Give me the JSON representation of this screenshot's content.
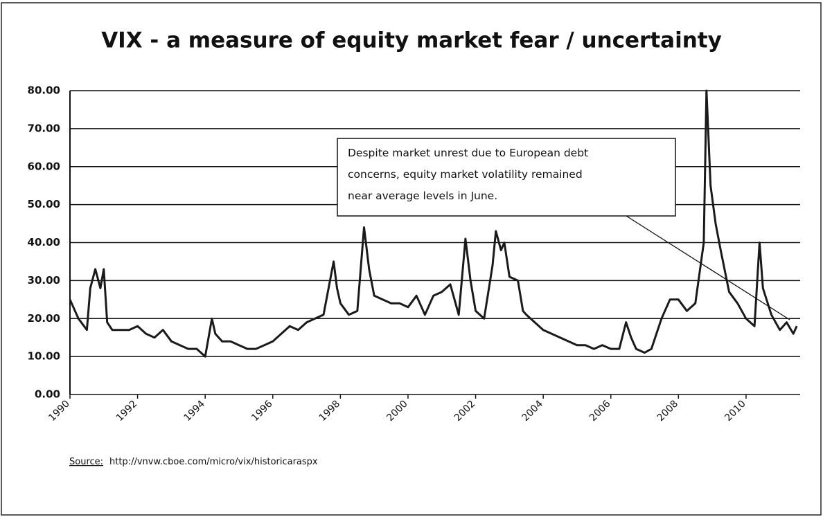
{
  "chart_data": {
    "type": "line",
    "title": "VIX - a measure of equity market fear / uncertainty",
    "x": [
      1990.0,
      1990.25,
      1990.5,
      1990.6,
      1990.75,
      1990.9,
      1991.0,
      1991.1,
      1991.25,
      1991.5,
      1991.75,
      1992.0,
      1992.25,
      1992.5,
      1992.75,
      1993.0,
      1993.25,
      1993.5,
      1993.75,
      1994.0,
      1994.2,
      1994.3,
      1994.5,
      1994.75,
      1995.0,
      1995.25,
      1995.5,
      1995.75,
      1996.0,
      1996.25,
      1996.5,
      1996.75,
      1997.0,
      1997.25,
      1997.5,
      1997.8,
      1997.9,
      1998.0,
      1998.25,
      1998.5,
      1998.7,
      1998.85,
      1999.0,
      1999.25,
      1999.5,
      1999.75,
      2000.0,
      2000.25,
      2000.5,
      2000.75,
      2001.0,
      2001.25,
      2001.5,
      2001.7,
      2001.85,
      2002.0,
      2002.25,
      2002.5,
      2002.6,
      2002.75,
      2002.85,
      2003.0,
      2003.25,
      2003.4,
      2003.5,
      2003.75,
      2004.0,
      2004.25,
      2004.5,
      2004.75,
      2005.0,
      2005.25,
      2005.5,
      2005.75,
      2006.0,
      2006.25,
      2006.45,
      2006.6,
      2006.75,
      2007.0,
      2007.2,
      2007.5,
      2007.75,
      2008.0,
      2008.25,
      2008.5,
      2008.75,
      2008.83,
      2008.95,
      2009.1,
      2009.25,
      2009.5,
      2009.75,
      2010.0,
      2010.25,
      2010.4,
      2010.5,
      2010.75,
      2011.0,
      2011.2,
      2011.4,
      2011.5
    ],
    "series": [
      {
        "color": "#1a1a1a",
        "values": [
          25,
          20,
          17,
          28,
          33,
          28,
          33,
          19,
          17,
          17,
          17,
          18,
          16,
          15,
          17,
          14,
          13,
          12,
          12,
          10,
          20,
          16,
          14,
          14,
          13,
          12,
          12,
          13,
          14,
          16,
          18,
          17,
          19,
          20,
          21,
          35,
          28,
          24,
          21,
          22,
          44,
          33,
          26,
          25,
          24,
          24,
          23,
          26,
          21,
          26,
          27,
          29,
          21,
          41,
          30,
          22,
          20,
          34,
          43,
          38,
          40,
          31,
          30,
          22,
          21,
          19,
          17,
          16,
          15,
          14,
          13,
          13,
          12,
          13,
          12,
          12,
          19,
          15,
          12,
          11,
          12,
          20,
          25,
          25,
          22,
          24,
          40,
          80,
          55,
          45,
          38,
          27,
          24,
          20,
          18,
          40,
          28,
          21,
          17,
          19,
          16,
          18
        ]
      }
    ],
    "xlim": [
      1990,
      2011.6
    ],
    "xticks": [
      1990,
      1992,
      1994,
      1996,
      1998,
      2000,
      2002,
      2004,
      2006,
      2008,
      2010
    ],
    "ylim": [
      0,
      80
    ],
    "yticks": [
      {
        "value": 0,
        "label": "0.00"
      },
      {
        "value": 10,
        "label": "10.00"
      },
      {
        "value": 20,
        "label": "20.00"
      },
      {
        "value": 30,
        "label": "30.00"
      },
      {
        "value": 40,
        "label": "40.00"
      },
      {
        "value": 50,
        "label": "50.00"
      },
      {
        "value": 60,
        "label": "60.00"
      },
      {
        "value": 70,
        "label": "70.00"
      },
      {
        "value": 80,
        "label": "80.00"
      }
    ],
    "grid": true,
    "annotation": {
      "lines": [
        "Despite market unrest due to European debt",
        "concerns, equity market volatility remained",
        "near average levels in June."
      ]
    },
    "source_label": "Source:",
    "source_url": "http://vnvw.cboe.com/micro/vix/historicaraspx"
  }
}
